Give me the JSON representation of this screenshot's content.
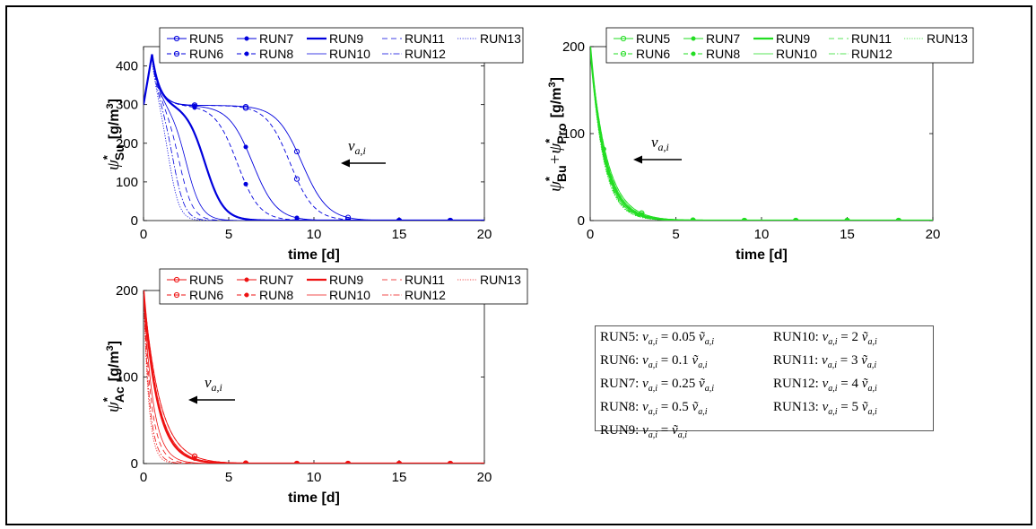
{
  "legend_runs": [
    "RUN5",
    "RUN7",
    "RUN9",
    "RUN11",
    "RUN13",
    "RUN6",
    "RUN8",
    "RUN10",
    "RUN12"
  ],
  "arrow_label": "v",
  "arrow_label_sub": "a,i",
  "chart_data": [
    {
      "id": "su",
      "type": "line",
      "title": "",
      "color": "#0000dd",
      "xlabel": "time [d]",
      "ylabel": "ψ*Su [g/m3]",
      "ylabel_parts": [
        "ψ",
        "*",
        "Su",
        "[g/m",
        "3",
        "]"
      ],
      "xlim": [
        0,
        20
      ],
      "ylim": [
        0,
        450
      ],
      "xticks": [
        0,
        5,
        10,
        15,
        20
      ],
      "yticks": [
        0,
        100,
        200,
        300,
        400
      ],
      "peak": [
        0.5,
        430
      ],
      "series": [
        {
          "name": "RUN5",
          "plateau": 298,
          "drop_t": 9.3,
          "width": 0.75,
          "markers": [
            3,
            6,
            9,
            12,
            15,
            18
          ]
        },
        {
          "name": "RUN6",
          "plateau": 298,
          "drop_t": 8.6,
          "width": 0.7,
          "markers": [
            3,
            6,
            9,
            12,
            15,
            18
          ]
        },
        {
          "name": "RUN7",
          "plateau": 298,
          "drop_t": 6.4,
          "width": 0.7,
          "markers": [
            3,
            6,
            9,
            12,
            15,
            18
          ]
        },
        {
          "name": "RUN8",
          "plateau": 298,
          "drop_t": 5.5,
          "width": 0.65,
          "markers": [
            3,
            6,
            9,
            12,
            15,
            18
          ]
        },
        {
          "name": "RUN9",
          "plateau": 300,
          "drop_t": 3.6,
          "width": 0.55
        },
        {
          "name": "RUN10",
          "plateau": 300,
          "drop_t": 2.5,
          "width": 0.45
        },
        {
          "name": "RUN11",
          "plateau": 300,
          "drop_t": 2.1,
          "width": 0.4
        },
        {
          "name": "RUN12",
          "plateau": 300,
          "drop_t": 1.75,
          "width": 0.35
        },
        {
          "name": "RUN13",
          "plateau": 300,
          "drop_t": 1.5,
          "width": 0.32
        }
      ]
    },
    {
      "id": "bupro",
      "type": "line",
      "title": "",
      "color": "#22dd22",
      "xlabel": "time [d]",
      "ylabel": "ψ*Bu+ψ*Pro [g/m3]",
      "ylabel_parts": [
        "ψ",
        "*",
        "Bu",
        "+ψ",
        "*",
        "Pro",
        "[g/m",
        "3",
        "]"
      ],
      "xlim": [
        0,
        20
      ],
      "ylim": [
        0,
        200
      ],
      "xticks": [
        0,
        5,
        10,
        15,
        20
      ],
      "yticks": [
        0,
        100,
        200
      ],
      "initial": 200,
      "series": [
        {
          "name": "RUN5",
          "tau": 0.95,
          "markers": [
            3,
            6,
            9,
            12,
            15,
            18
          ]
        },
        {
          "name": "RUN6",
          "tau": 0.95,
          "markers": [
            3,
            6,
            9,
            12,
            15,
            18
          ]
        },
        {
          "name": "RUN7",
          "tau": 0.9,
          "markers": [
            0.8,
            3,
            6,
            9,
            12,
            15,
            18
          ]
        },
        {
          "name": "RUN8",
          "tau": 0.9,
          "markers": [
            0.8,
            3,
            6,
            9,
            12,
            15,
            18
          ]
        },
        {
          "name": "RUN9",
          "tau": 0.85
        },
        {
          "name": "RUN10",
          "tau": 0.8
        },
        {
          "name": "RUN11",
          "tau": 0.78
        },
        {
          "name": "RUN12",
          "tau": 0.76
        },
        {
          "name": "RUN13",
          "tau": 0.74
        }
      ]
    },
    {
      "id": "ac",
      "type": "line",
      "title": "",
      "color": "#ee1111",
      "xlabel": "time [d]",
      "ylabel": "ψ*Ac [g/m3]",
      "ylabel_parts": [
        "ψ",
        "*",
        "Ac",
        "[g/m",
        "3",
        "]"
      ],
      "xlim": [
        0,
        20
      ],
      "ylim": [
        0,
        200
      ],
      "xticks": [
        0,
        5,
        10,
        15,
        20
      ],
      "yticks": [
        0,
        100,
        200
      ],
      "initial": 200,
      "series": [
        {
          "name": "RUN5",
          "tau": 0.95,
          "markers": [
            3,
            6,
            9,
            12,
            15,
            18
          ]
        },
        {
          "name": "RUN6",
          "tau": 0.95,
          "markers": [
            3,
            6,
            9,
            12,
            15,
            18
          ]
        },
        {
          "name": "RUN7",
          "tau": 0.85,
          "markers": [
            3,
            6,
            9,
            12,
            15,
            18
          ]
        },
        {
          "name": "RUN8",
          "tau": 0.85,
          "markers": [
            3,
            6,
            9,
            12,
            15,
            18
          ]
        },
        {
          "name": "RUN9",
          "tau": 0.8
        },
        {
          "name": "RUN10",
          "tau": 0.55
        },
        {
          "name": "RUN11",
          "tau": 0.45
        },
        {
          "name": "RUN12",
          "tau": 0.35
        },
        {
          "name": "RUN13",
          "tau": 0.3
        }
      ]
    }
  ],
  "params_box": {
    "rows": [
      [
        "RUN5: ",
        "0.05",
        "RUN10: ",
        "2"
      ],
      [
        "RUN6: ",
        "0.1",
        "RUN11: ",
        "3"
      ],
      [
        "RUN7: ",
        "0.25",
        "RUN12: ",
        "4"
      ],
      [
        "RUN8: ",
        "0.5",
        "RUN13: ",
        "5"
      ],
      [
        "RUN9: ",
        "",
        "",
        ""
      ]
    ]
  }
}
